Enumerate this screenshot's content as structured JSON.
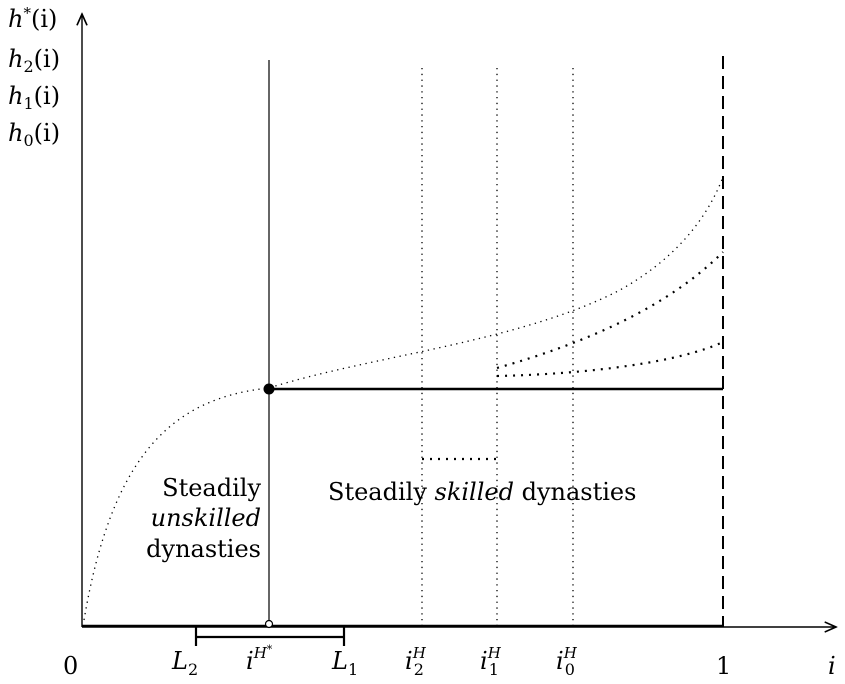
{
  "y_axis": {
    "labels": [
      {
        "base": "h",
        "sup": "*",
        "arg": "(i)"
      },
      {
        "base": "h",
        "sub": "2",
        "arg": "(i)"
      },
      {
        "base": "h",
        "sub": "1",
        "arg": "(i)"
      },
      {
        "base": "h",
        "sub": "0",
        "arg": "(i)"
      }
    ]
  },
  "x_axis": {
    "label": "i",
    "ticks": {
      "zero": "0",
      "one": "1",
      "L2": {
        "base": "L",
        "sub": "2"
      },
      "L1": {
        "base": "L",
        "sub": "1"
      },
      "iH_star": {
        "base": "i",
        "sup": "H",
        "supsup": "*"
      },
      "i2H": {
        "base": "i",
        "sub": "2",
        "sup": "H"
      },
      "i1H": {
        "base": "i",
        "sub": "1",
        "sup": "H"
      },
      "i0H": {
        "base": "i",
        "sub": "0",
        "sup": "H"
      }
    }
  },
  "regions": {
    "unskilled": {
      "line1": "Steadily",
      "line2": "unskilled",
      "line3": "dynasties"
    },
    "skilled": {
      "word1": "Steadily",
      "word2": "skilled",
      "word3": "dynasties"
    }
  }
}
